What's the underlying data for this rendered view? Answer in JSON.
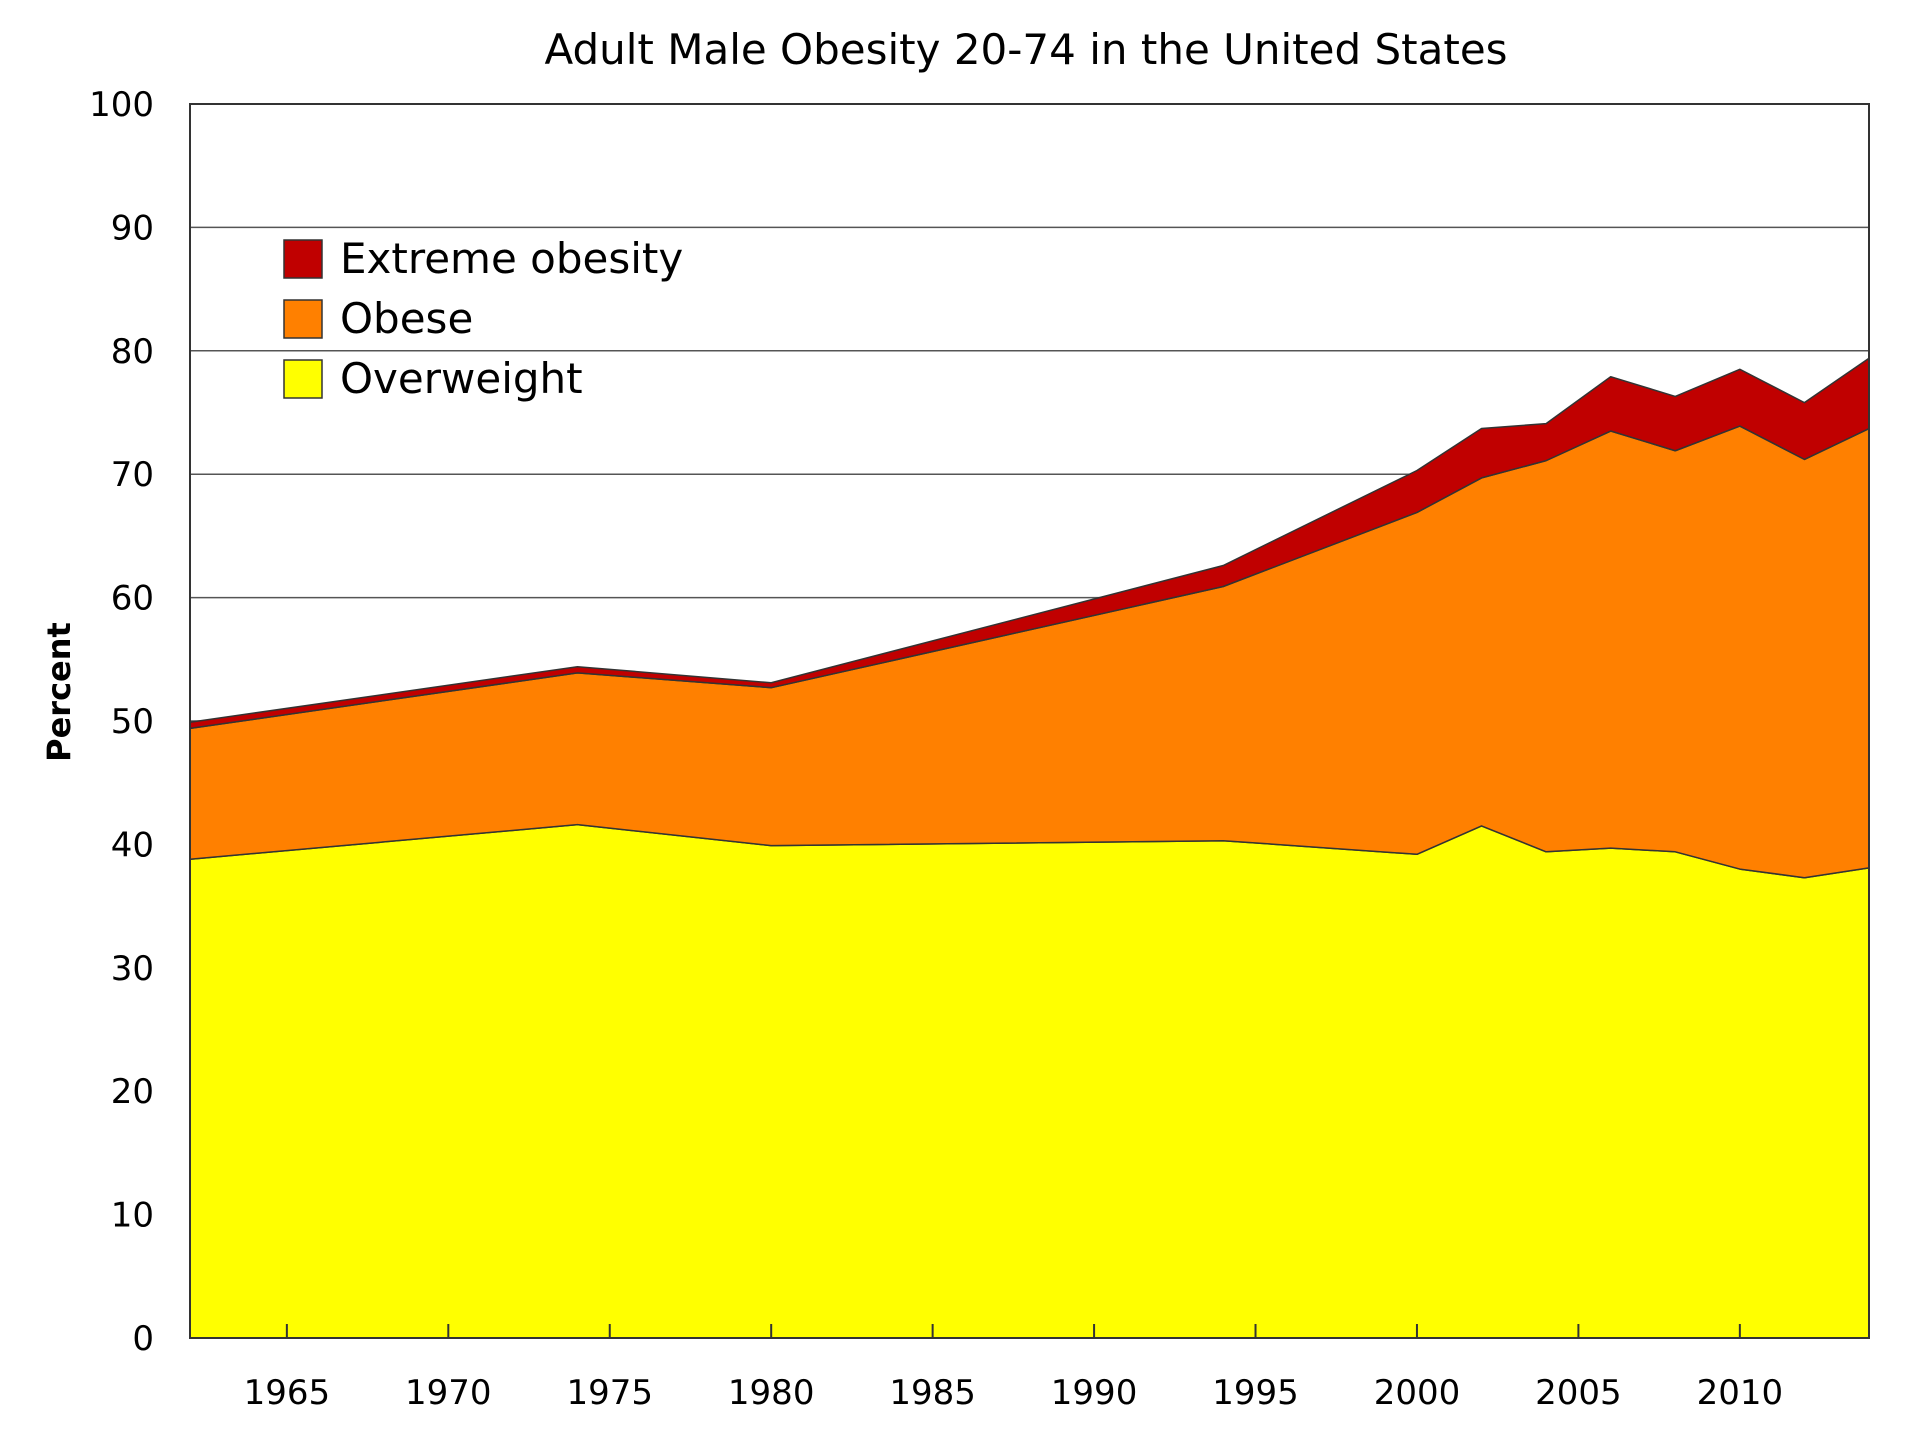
{
  "chart_data": {
    "type": "area",
    "stacked": true,
    "title": "Adult Male Obesity 20-74 in the United States",
    "xlabel": "",
    "ylabel": "Percent",
    "xlim": [
      1962,
      2014
    ],
    "ylim": [
      0,
      100
    ],
    "yticks": [
      0,
      10,
      20,
      30,
      40,
      50,
      60,
      70,
      80,
      90,
      100
    ],
    "xticks": [
      1965,
      1970,
      1975,
      1980,
      1985,
      1990,
      1995,
      2000,
      2005,
      2010
    ],
    "grid": "horizontal",
    "legend_position": "top-left",
    "x": [
      1962,
      1974,
      1980,
      1994,
      2000,
      2002,
      2004,
      2006,
      2008,
      2010,
      2012,
      2014
    ],
    "series": [
      {
        "name": "Overweight",
        "color": "#ffff00",
        "values": [
          38.8,
          41.6,
          39.9,
          40.3,
          39.2,
          41.5,
          39.4,
          39.7,
          39.4,
          38.0,
          37.3,
          38.1
        ]
      },
      {
        "name": "Obese",
        "color": "#ff8000",
        "values": [
          10.6,
          12.3,
          12.8,
          20.6,
          27.7,
          28.2,
          31.7,
          33.8,
          32.5,
          35.9,
          33.9,
          35.6
        ]
      },
      {
        "name": "Extreme obesity",
        "color": "#c00000",
        "values": [
          0.5,
          0.5,
          0.4,
          1.7,
          3.4,
          4.0,
          3.0,
          4.4,
          4.4,
          4.6,
          4.6,
          5.7
        ]
      }
    ]
  }
}
